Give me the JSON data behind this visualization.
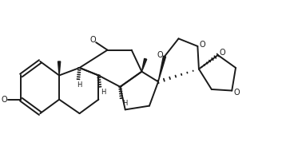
{
  "bg_color": "#ffffff",
  "line_color": "#1a1a1a",
  "line_width": 1.4,
  "fig_width": 3.58,
  "fig_height": 2.08,
  "dpi": 100,
  "xlim": [
    0,
    11
  ],
  "ylim": [
    0,
    6.5
  ]
}
